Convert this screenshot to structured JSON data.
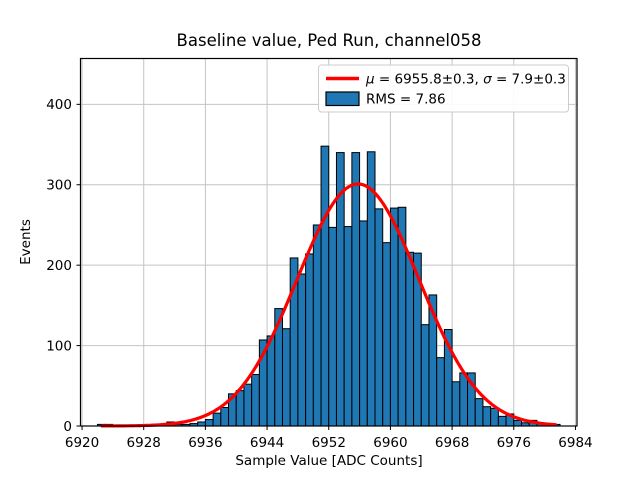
{
  "figure": {
    "title": "Baseline value, Ped Run, channel058"
  },
  "chart_data": {
    "type": "bar",
    "subtype": "histogram",
    "title": "Baseline value, Ped Run, channel058",
    "xlabel": "Sample Value [ADC Counts]",
    "ylabel": "Events",
    "x_ticks": [
      6920,
      6928,
      6936,
      6944,
      6952,
      6960,
      6968,
      6976,
      6984
    ],
    "y_ticks": [
      0,
      100,
      200,
      300,
      400
    ],
    "xlim": [
      6919.8,
      6984.2
    ],
    "ylim": [
      0,
      457
    ],
    "grid": true,
    "legend_position": "upper right",
    "bin_width": 1,
    "bin_left_edges": [
      6922,
      6923,
      6924,
      6925,
      6926,
      6927,
      6928,
      6929,
      6930,
      6931,
      6932,
      6933,
      6934,
      6935,
      6936,
      6937,
      6938,
      6939,
      6940,
      6941,
      6942,
      6943,
      6944,
      6945,
      6946,
      6947,
      6948,
      6949,
      6950,
      6951,
      6952,
      6953,
      6954,
      6955,
      6956,
      6957,
      6958,
      6959,
      6960,
      6961,
      6962,
      6963,
      6964,
      6965,
      6966,
      6967,
      6968,
      6969,
      6970,
      6971,
      6972,
      6973,
      6974,
      6975,
      6976,
      6977,
      6978,
      6979,
      6980,
      6981
    ],
    "counts": [
      2,
      2,
      1,
      1,
      1,
      1,
      1,
      1,
      1,
      5,
      2,
      2,
      3,
      5,
      8,
      16,
      23,
      40,
      44,
      52,
      64,
      107,
      112,
      146,
      121,
      209,
      189,
      214,
      250,
      348,
      247,
      340,
      248,
      340,
      255,
      341,
      270,
      228,
      271,
      272,
      216,
      215,
      126,
      163,
      85,
      120,
      55,
      66,
      66,
      34,
      24,
      22,
      12,
      15,
      7,
      4,
      7,
      3,
      2,
      2
    ],
    "fit": {
      "type": "gaussian",
      "mu": 6955.8,
      "mu_err": 0.3,
      "sigma": 7.9,
      "sigma_err": 0.3,
      "amplitude": 301,
      "domain": [
        6922.6,
        6981.4
      ]
    },
    "legend": {
      "entries": [
        {
          "type": "line",
          "color": "#ff0000",
          "label": "μ = 6955.8±0.3, σ = 7.9±0.3",
          "label_parts": {
            "sym1": "μ",
            "part1": " = 6955.8±0.3, ",
            "sym2": "σ",
            "part2": " = 7.9±0.3"
          }
        },
        {
          "type": "patch",
          "color": "#1f77b4",
          "label": "RMS = 7.86"
        }
      ]
    },
    "colors": {
      "bar_fill": "#1f77b4",
      "bar_edge": "#000000",
      "fit_line": "#ff0000",
      "grid": "#c4c4c4",
      "axes": "#000000",
      "background": "#ffffff"
    }
  }
}
